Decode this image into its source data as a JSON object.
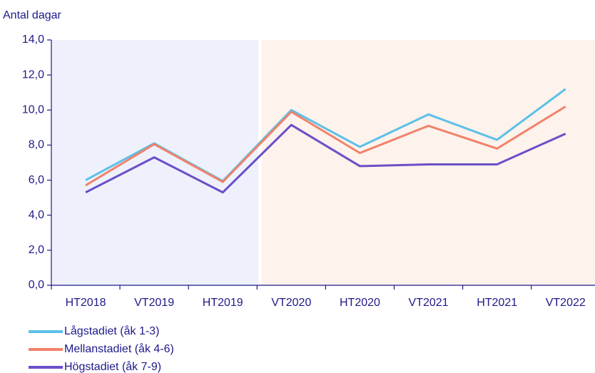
{
  "chart_data": {
    "type": "line",
    "y_axis_label": "Antal dagar",
    "categories": [
      "HT2018",
      "VT2019",
      "HT2019",
      "VT2020",
      "HT2020",
      "VT2021",
      "HT2021",
      "VT2022"
    ],
    "series": [
      {
        "name": "Lågstadiet (åk 1-3)",
        "color": "#5bc0e8",
        "values": [
          6.0,
          8.1,
          5.95,
          10.0,
          7.9,
          9.75,
          8.3,
          11.2
        ]
      },
      {
        "name": "Mellanstadiet (åk 4-6)",
        "color": "#f0826a",
        "values": [
          5.7,
          8.05,
          5.9,
          9.9,
          7.55,
          9.1,
          7.8,
          10.2
        ]
      },
      {
        "name": "Högstadiet (åk 7-9)",
        "color": "#6a4fc8",
        "values": [
          5.3,
          7.3,
          5.3,
          9.15,
          6.8,
          6.9,
          6.9,
          8.65
        ]
      }
    ],
    "ylim": [
      0,
      14
    ],
    "yticks": [
      {
        "value": 0,
        "label": "0,0"
      },
      {
        "value": 2,
        "label": "2,0"
      },
      {
        "value": 4,
        "label": "4,0"
      },
      {
        "value": 6,
        "label": "6,0"
      },
      {
        "value": 8,
        "label": "8,0"
      },
      {
        "value": 10,
        "label": "10,0"
      },
      {
        "value": 12,
        "label": "12,0"
      },
      {
        "value": 14,
        "label": "14,0"
      }
    ],
    "grid": false,
    "legend": "bottom-left"
  }
}
